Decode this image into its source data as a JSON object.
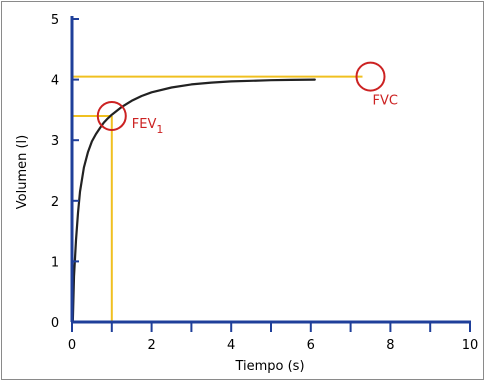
{
  "chart_data": {
    "type": "line",
    "title": "",
    "xlabel": "Tiempo (s)",
    "ylabel": "Volumen (l)",
    "xlim": [
      0,
      10
    ],
    "ylim": [
      0,
      5
    ],
    "x_ticks": [
      0,
      2,
      4,
      6,
      8,
      10
    ],
    "x_minor_ticks": [
      1,
      3,
      5,
      7,
      9
    ],
    "y_ticks": [
      0,
      1,
      2,
      3,
      4,
      5
    ],
    "grid": false,
    "colors": {
      "axis": "#1f3f9a",
      "curve": "#222222",
      "guide": "#f0c020",
      "annotation": "#cc2222"
    },
    "curve": {
      "x": [
        0.02,
        0.05,
        0.1,
        0.15,
        0.2,
        0.3,
        0.4,
        0.5,
        0.6,
        0.7,
        0.8,
        0.9,
        1.0,
        1.25,
        1.5,
        1.75,
        2.0,
        2.5,
        3.0,
        3.5,
        4.0,
        4.5,
        5.0,
        5.5,
        6.1
      ],
      "y": [
        0.0,
        0.75,
        1.35,
        1.8,
        2.15,
        2.55,
        2.8,
        2.98,
        3.1,
        3.2,
        3.29,
        3.36,
        3.42,
        3.55,
        3.65,
        3.73,
        3.79,
        3.87,
        3.92,
        3.95,
        3.97,
        3.98,
        3.99,
        3.995,
        4.0
      ]
    },
    "annotations": [
      {
        "id": "fev1",
        "label": "FEV",
        "subscript": "1",
        "x": 1.0,
        "y": 3.4
      },
      {
        "id": "fvc",
        "label": "FVC",
        "x": 7.5,
        "y": 4.05
      }
    ],
    "guides": {
      "fev1_x": 1.0,
      "fev1_y": 3.4,
      "fvc_y": 4.05,
      "fvc_x_end": 7.5
    }
  }
}
